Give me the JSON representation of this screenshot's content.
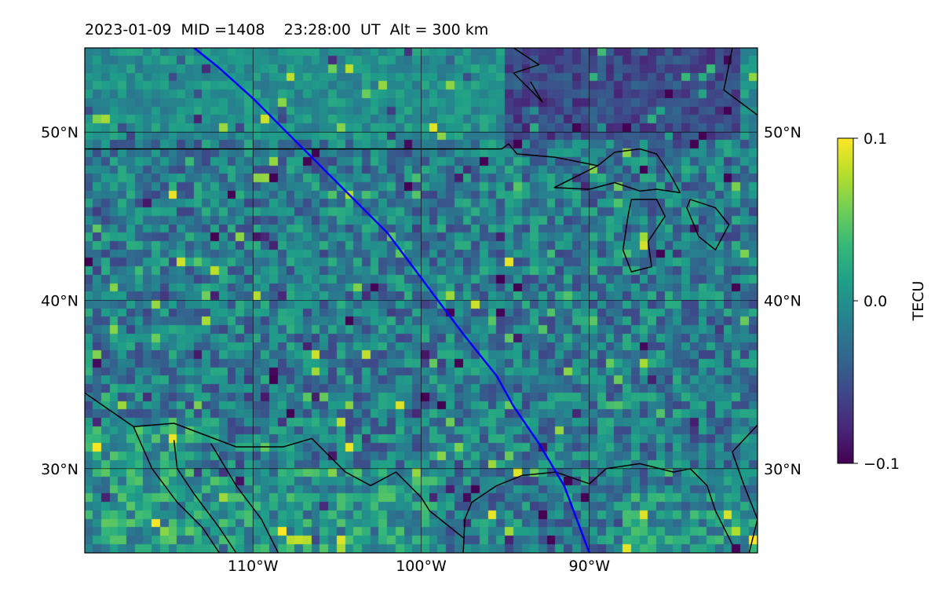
{
  "title": {
    "date": "2023-01-09",
    "mid": "MID =1408",
    "time": "23:28:00  UT",
    "alt": "Alt = 300 km"
  },
  "map": {
    "lon_range": [
      -120,
      -80
    ],
    "lat_range": [
      25,
      55
    ],
    "lon_gridlines": [
      -110,
      -100,
      -90
    ],
    "lat_gridlines": [
      30,
      40,
      50
    ],
    "lon_tick_labels": [
      "110°W",
      "100°W",
      "90°W"
    ],
    "lat_tick_labels": [
      "30°N",
      "40°N",
      "50°N"
    ],
    "grid": true,
    "cell_size_deg": 0.5,
    "satellite_track": {
      "color": "#0000ff",
      "points": [
        [
          -113.5,
          55
        ],
        [
          -112,
          53.8
        ],
        [
          -110,
          52
        ],
        [
          -108,
          50
        ],
        [
          -106.5,
          48.5
        ],
        [
          -104,
          46
        ],
        [
          -102,
          44
        ],
        [
          -100.5,
          42
        ],
        [
          -99,
          40
        ],
        [
          -97.5,
          38
        ],
        [
          -95.5,
          35.5
        ],
        [
          -94.5,
          33.7
        ],
        [
          -93,
          31.5
        ],
        [
          -91.5,
          29
        ],
        [
          -90,
          25
        ]
      ]
    },
    "coastlines": [
      {
        "name": "us-canada-border",
        "points": [
          [
            -120,
            49
          ],
          [
            -95.2,
            49
          ],
          [
            -94.8,
            49.3
          ],
          [
            -94.3,
            48.7
          ],
          [
            -92,
            48.5
          ],
          [
            -90,
            48.1
          ],
          [
            -89.5,
            48
          ]
        ]
      },
      {
        "name": "lake-superior",
        "points": [
          [
            -92.1,
            46.7
          ],
          [
            -90.5,
            47.5
          ],
          [
            -89.5,
            48
          ],
          [
            -88.5,
            48.8
          ],
          [
            -87,
            49
          ],
          [
            -86,
            48.7
          ],
          [
            -85.2,
            47.5
          ],
          [
            -84.6,
            46.4
          ],
          [
            -86,
            46.6
          ],
          [
            -87,
            46.5
          ],
          [
            -88.5,
            47
          ],
          [
            -90,
            46.6
          ],
          [
            -92.1,
            46.7
          ]
        ]
      },
      {
        "name": "lake-michigan",
        "points": [
          [
            -87.5,
            46
          ],
          [
            -86,
            46
          ],
          [
            -85.5,
            45
          ],
          [
            -86.5,
            43.5
          ],
          [
            -86.3,
            42
          ],
          [
            -87.5,
            41.7
          ],
          [
            -88,
            43
          ],
          [
            -87.7,
            45
          ],
          [
            -87.5,
            46
          ]
        ]
      },
      {
        "name": "lake-huron",
        "points": [
          [
            -84,
            46
          ],
          [
            -82.5,
            45.5
          ],
          [
            -81.7,
            44.5
          ],
          [
            -82.5,
            43
          ],
          [
            -83.5,
            43.8
          ],
          [
            -84.2,
            45.5
          ],
          [
            -84,
            46
          ]
        ]
      },
      {
        "name": "hudson-bay-coast",
        "points": [
          [
            -94.5,
            55
          ],
          [
            -93,
            54
          ],
          [
            -94.5,
            53.5
          ],
          [
            -93.5,
            52.5
          ],
          [
            -92.8,
            51.8
          ],
          [
            -93.5,
            53
          ]
        ]
      },
      {
        "name": "james-bay-coast",
        "points": [
          [
            -81.5,
            55
          ],
          [
            -82,
            52.5
          ],
          [
            -80,
            51
          ]
        ]
      },
      {
        "name": "gulf-coast",
        "points": [
          [
            -97.5,
            25
          ],
          [
            -97.4,
            27
          ],
          [
            -97,
            28
          ],
          [
            -95.5,
            29
          ],
          [
            -94,
            29.6
          ],
          [
            -92,
            29.8
          ],
          [
            -90,
            29.1
          ],
          [
            -89,
            30
          ],
          [
            -87,
            30.3
          ],
          [
            -85,
            29.8
          ],
          [
            -84,
            30
          ],
          [
            -83,
            29
          ],
          [
            -82.5,
            27.5
          ],
          [
            -81.5,
            25.5
          ]
        ]
      },
      {
        "name": "atlantic-coast",
        "points": [
          [
            -80.5,
            25
          ],
          [
            -80,
            27
          ],
          [
            -80.8,
            29
          ],
          [
            -81.5,
            31
          ],
          [
            -80,
            32.6
          ]
        ]
      },
      {
        "name": "us-mexico-border",
        "points": [
          [
            -120,
            34.5
          ],
          [
            -117.1,
            32.5
          ],
          [
            -114.7,
            32.7
          ],
          [
            -111,
            31.3
          ],
          [
            -108.2,
            31.3
          ],
          [
            -106.5,
            31.8
          ],
          [
            -104.5,
            29.8
          ],
          [
            -103,
            29
          ],
          [
            -101.5,
            29.8
          ],
          [
            -100,
            28.3
          ],
          [
            -99.5,
            27.5
          ],
          [
            -97.5,
            25.9
          ]
        ]
      },
      {
        "name": "baja-coast",
        "points": [
          [
            -117.1,
            32.5
          ],
          [
            -116,
            30
          ],
          [
            -114.5,
            28
          ],
          [
            -113,
            26.5
          ],
          [
            -112,
            25
          ]
        ]
      },
      {
        "name": "gulf-of-california",
        "points": [
          [
            -114.7,
            31.7
          ],
          [
            -114.5,
            30
          ],
          [
            -113.5,
            28.5
          ],
          [
            -112,
            26.5
          ],
          [
            -111,
            25
          ]
        ]
      },
      {
        "name": "mexico-west-coast",
        "points": [
          [
            -112.5,
            31.5
          ],
          [
            -111,
            29
          ],
          [
            -109.5,
            27
          ],
          [
            -108.5,
            25
          ]
        ]
      }
    ]
  },
  "colorbar": {
    "label": "TECU",
    "min": -0.1,
    "max": 0.1,
    "tick_labels": [
      "0.1",
      "0.0",
      "−0.1"
    ],
    "colormap": [
      "#440154",
      "#482878",
      "#3e4989",
      "#31688e",
      "#26828e",
      "#1f9e89",
      "#35b779",
      "#6ece58",
      "#b5de2b",
      "#fde725"
    ]
  }
}
